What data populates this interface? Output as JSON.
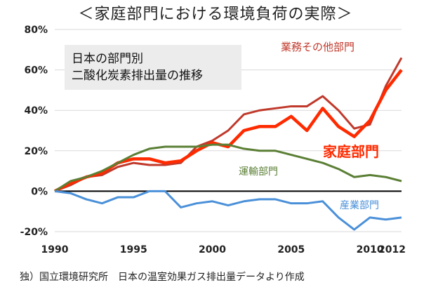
{
  "title": "＜家庭部門における環境負荷の実際＞",
  "footer": "独）国立環境研究所　日本の温室効果ガス排出量データより作成",
  "chart_data": {
    "type": "line",
    "annotation": [
      "日本の部門別",
      "二酸化炭素排出量の推移"
    ],
    "x": [
      1990,
      1991,
      1992,
      1993,
      1994,
      1995,
      1996,
      1997,
      1998,
      1999,
      2000,
      2001,
      2002,
      2003,
      2004,
      2005,
      2006,
      2007,
      2008,
      2009,
      2010,
      2011,
      2012
    ],
    "x_ticks": [
      "1990",
      "1995",
      "2000",
      "2005",
      "2010",
      "2012"
    ],
    "y_ticks": [
      "80%",
      "60%",
      "40%",
      "20%",
      "0%",
      "-20%"
    ],
    "ylim": [
      -20,
      80
    ],
    "series": [
      {
        "name": "業務その他部門",
        "color": "#c0392b",
        "values": [
          0,
          3,
          7,
          8,
          12,
          14,
          13,
          13,
          14,
          22,
          25,
          30,
          38,
          40,
          41,
          42,
          42,
          47,
          40,
          31,
          33,
          52,
          66
        ]
      },
      {
        "name": "家庭部門",
        "color": "#ff2a00",
        "values": [
          0,
          4,
          7,
          9,
          14,
          16,
          16,
          14,
          15,
          20,
          24,
          22,
          30,
          32,
          32,
          37,
          30,
          41,
          32,
          27,
          35,
          50,
          60
        ]
      },
      {
        "name": "運輸部門",
        "color": "#5b7f35",
        "values": [
          0,
          5,
          7,
          10,
          14,
          18,
          21,
          22,
          22,
          22,
          23,
          23,
          21,
          20,
          20,
          18,
          16,
          14,
          11,
          7,
          8,
          7,
          5
        ]
      },
      {
        "name": "産業部門",
        "color": "#4a90d9",
        "values": [
          0,
          -1,
          -4,
          -6,
          -3,
          -3,
          0,
          0,
          -8,
          -6,
          -5,
          -7,
          -5,
          -4,
          -4,
          -6,
          -6,
          -5,
          -13,
          -19,
          -13,
          -14,
          -13
        ]
      }
    ]
  }
}
